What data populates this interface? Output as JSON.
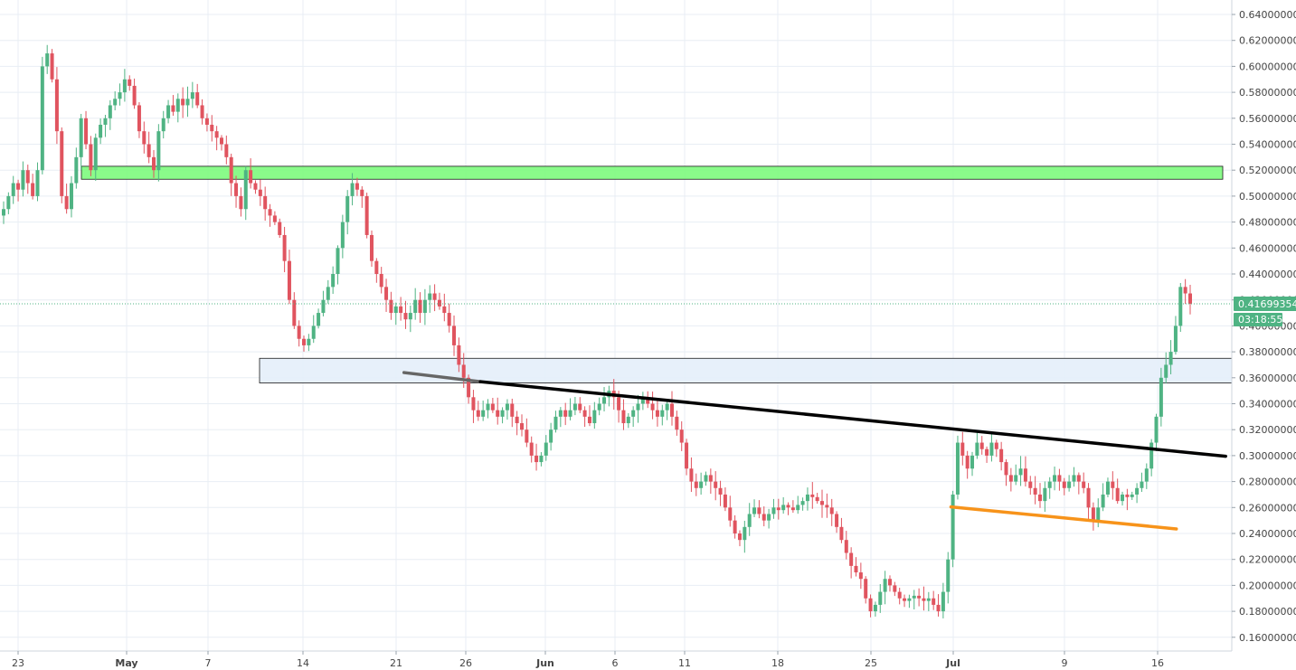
{
  "chart_data": {
    "type": "candlestick",
    "title": "",
    "xlabel": "",
    "ylabel": "",
    "ylim": [
      0.15,
      0.65
    ],
    "grid": true,
    "x_ticks": [
      "23",
      "May",
      "7",
      "14",
      "21",
      "26",
      "Jun",
      "6",
      "11",
      "18",
      "25",
      "Jul",
      "9",
      "16"
    ],
    "y_ticks": [
      "0.16000000",
      "0.18000000",
      "0.20000000",
      "0.22000000",
      "0.24000000",
      "0.26000000",
      "0.28000000",
      "0.30000000",
      "0.32000000",
      "0.34000000",
      "0.36000000",
      "0.38000000",
      "0.40000000",
      "0.42000000",
      "0.44000000",
      "0.46000000",
      "0.48000000",
      "0.50000000",
      "0.52000000",
      "0.54000000",
      "0.56000000",
      "0.58000000",
      "0.60000000",
      "0.62000000",
      "0.64000000"
    ],
    "close_series": [
      0.49,
      0.5,
      0.51,
      0.505,
      0.52,
      0.51,
      0.5,
      0.52,
      0.6,
      0.61,
      0.59,
      0.55,
      0.5,
      0.49,
      0.51,
      0.53,
      0.56,
      0.54,
      0.52,
      0.545,
      0.555,
      0.56,
      0.57,
      0.575,
      0.58,
      0.59,
      0.585,
      0.57,
      0.55,
      0.54,
      0.53,
      0.52,
      0.55,
      0.56,
      0.57,
      0.565,
      0.575,
      0.57,
      0.575,
      0.58,
      0.57,
      0.56,
      0.555,
      0.55,
      0.545,
      0.54,
      0.53,
      0.51,
      0.5,
      0.49,
      0.52,
      0.51,
      0.505,
      0.5,
      0.49,
      0.485,
      0.48,
      0.47,
      0.45,
      0.42,
      0.4,
      0.39,
      0.385,
      0.39,
      0.4,
      0.41,
      0.42,
      0.43,
      0.44,
      0.46,
      0.48,
      0.5,
      0.51,
      0.505,
      0.5,
      0.47,
      0.45,
      0.44,
      0.43,
      0.42,
      0.41,
      0.415,
      0.41,
      0.405,
      0.41,
      0.42,
      0.41,
      0.42,
      0.425,
      0.42,
      0.415,
      0.41,
      0.4,
      0.385,
      0.37,
      0.36,
      0.345,
      0.335,
      0.33,
      0.335,
      0.34,
      0.335,
      0.33,
      0.335,
      0.34,
      0.33,
      0.325,
      0.32,
      0.31,
      0.3,
      0.295,
      0.3,
      0.31,
      0.32,
      0.33,
      0.335,
      0.33,
      0.335,
      0.34,
      0.335,
      0.33,
      0.325,
      0.335,
      0.34,
      0.345,
      0.35,
      0.345,
      0.335,
      0.325,
      0.33,
      0.335,
      0.34,
      0.345,
      0.34,
      0.335,
      0.33,
      0.335,
      0.34,
      0.33,
      0.32,
      0.31,
      0.29,
      0.28,
      0.275,
      0.28,
      0.285,
      0.28,
      0.275,
      0.27,
      0.26,
      0.25,
      0.24,
      0.235,
      0.245,
      0.255,
      0.26,
      0.255,
      0.25,
      0.255,
      0.26,
      0.258,
      0.262,
      0.26,
      0.258,
      0.262,
      0.265,
      0.27,
      0.268,
      0.265,
      0.262,
      0.26,
      0.255,
      0.245,
      0.235,
      0.225,
      0.215,
      0.21,
      0.205,
      0.19,
      0.18,
      0.185,
      0.195,
      0.205,
      0.2,
      0.195,
      0.19,
      0.188,
      0.19,
      0.192,
      0.19,
      0.188,
      0.19,
      0.185,
      0.18,
      0.195,
      0.22,
      0.27,
      0.31,
      0.3,
      0.29,
      0.3,
      0.31,
      0.305,
      0.3,
      0.31,
      0.305,
      0.295,
      0.285,
      0.28,
      0.285,
      0.29,
      0.28,
      0.275,
      0.27,
      0.265,
      0.275,
      0.28,
      0.285,
      0.28,
      0.275,
      0.28,
      0.285,
      0.28,
      0.275,
      0.26,
      0.25,
      0.26,
      0.27,
      0.28,
      0.275,
      0.265,
      0.27,
      0.268,
      0.27,
      0.275,
      0.28,
      0.29,
      0.31,
      0.33,
      0.36,
      0.37,
      0.38,
      0.4,
      0.43,
      0.425,
      0.4169935
    ],
    "current_price": "0.41699354",
    "countdown": "03:18:55",
    "zones": [
      {
        "name": "resistance-zone",
        "ymin": 0.513,
        "ymax": 0.523,
        "color": "#7dfb7d"
      },
      {
        "name": "support-zone",
        "ymin": 0.356,
        "ymax": 0.375,
        "color": "#e4eefa"
      }
    ],
    "trendlines": [
      {
        "name": "grey-trendline",
        "start_pct": 0.328,
        "end_pct": 0.39,
        "y1": 0.364,
        "y2": 0.357,
        "color": "#666666"
      },
      {
        "name": "black-trendline",
        "start_pct": 0.39,
        "end_pct": 0.995,
        "y1": 0.357,
        "y2": 0.2995,
        "color": "#000000"
      },
      {
        "name": "orange-trendline",
        "start_pct": 0.772,
        "end_pct": 0.955,
        "y1": 0.2605,
        "y2": 0.2435,
        "color": "#f7931a"
      }
    ],
    "colors": {
      "up": "#4fb383",
      "down": "#e0545f",
      "grid": "#e8eef4",
      "price_line": "#4fb383"
    }
  }
}
